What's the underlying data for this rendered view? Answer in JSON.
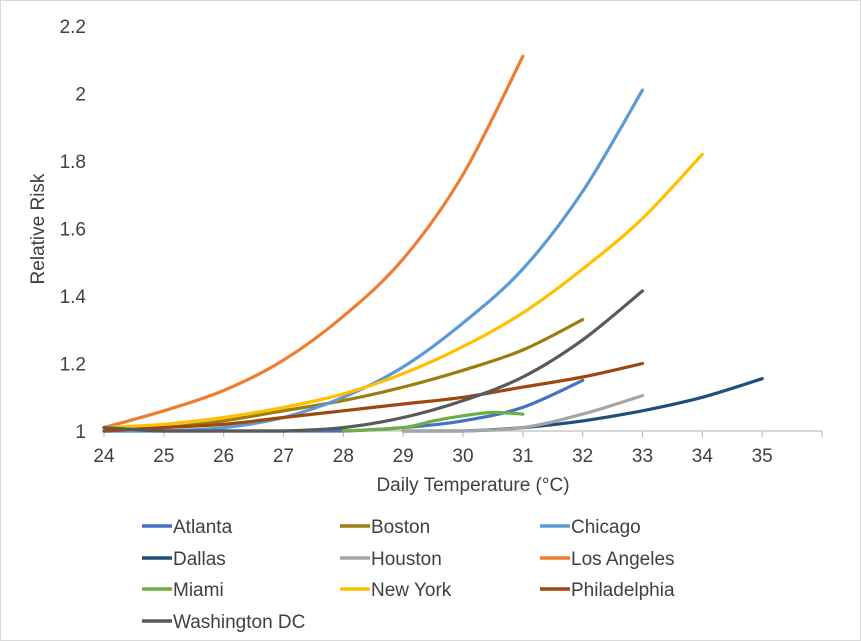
{
  "chart_data": {
    "type": "line",
    "title": "",
    "xlabel": "Daily Temperature (°C)",
    "ylabel": "Relative Risk",
    "xlim": [
      24,
      36
    ],
    "ylim": [
      1,
      2.2
    ],
    "x_ticks": [
      "24",
      "25",
      "26",
      "27",
      "28",
      "29",
      "30",
      "31",
      "32",
      "33",
      "34",
      "35"
    ],
    "y_ticks": [
      "1",
      "1.2",
      "1.4",
      "1.6",
      "1.8",
      "2",
      "2.2"
    ],
    "y_tick_values": [
      1,
      1.2,
      1.4,
      1.6,
      1.8,
      2,
      2.2
    ],
    "grid": false,
    "legend_position": "bottom",
    "series": [
      {
        "name": "Atlanta",
        "color": "#4472C4",
        "x": [
          24,
          25,
          26,
          27,
          28,
          29,
          30,
          31,
          32
        ],
        "y": [
          1.0,
          1.0,
          1.0,
          1.0,
          1.0,
          1.01,
          1.03,
          1.07,
          1.15
        ]
      },
      {
        "name": "Boston",
        "color": "#9C7E0E",
        "x": [
          24,
          25,
          26,
          27,
          28,
          29,
          30,
          31,
          32
        ],
        "y": [
          1.0,
          1.01,
          1.03,
          1.06,
          1.09,
          1.13,
          1.18,
          1.24,
          1.33
        ]
      },
      {
        "name": "Chicago",
        "color": "#5B9BD5",
        "x": [
          24,
          25,
          26,
          27,
          28,
          29,
          30,
          31,
          32,
          33
        ],
        "y": [
          1.0,
          1.0,
          1.01,
          1.04,
          1.1,
          1.19,
          1.32,
          1.48,
          1.71,
          2.01
        ]
      },
      {
        "name": "Dallas",
        "color": "#1F4E79",
        "x": [
          29,
          30,
          31,
          32,
          33,
          34,
          35
        ],
        "y": [
          1.0,
          1.0,
          1.01,
          1.03,
          1.06,
          1.1,
          1.155
        ]
      },
      {
        "name": "Houston",
        "color": "#A5A5A5",
        "x": [
          29,
          30,
          31,
          32,
          33
        ],
        "y": [
          1.0,
          1.0,
          1.01,
          1.05,
          1.105
        ]
      },
      {
        "name": "Los Angeles",
        "color": "#ED7D31",
        "x": [
          24,
          25,
          26,
          27,
          28,
          29,
          30,
          31
        ],
        "y": [
          1.01,
          1.06,
          1.12,
          1.21,
          1.34,
          1.51,
          1.76,
          2.11
        ]
      },
      {
        "name": "Miami",
        "color": "#70AD47",
        "x": [
          28,
          29,
          29.5,
          30,
          30.5,
          31
        ],
        "y": [
          1.0,
          1.01,
          1.03,
          1.045,
          1.055,
          1.05
        ]
      },
      {
        "name": "New York",
        "color": "#FFC000",
        "x": [
          24,
          25,
          26,
          27,
          28,
          29,
          30,
          31,
          32,
          33,
          34
        ],
        "y": [
          1.01,
          1.02,
          1.04,
          1.07,
          1.11,
          1.17,
          1.25,
          1.35,
          1.48,
          1.63,
          1.82
        ]
      },
      {
        "name": "Philadelphia",
        "color": "#9E480E",
        "x": [
          24,
          25,
          26,
          27,
          28,
          29,
          30,
          31,
          32,
          33
        ],
        "y": [
          1.0,
          1.01,
          1.02,
          1.04,
          1.06,
          1.08,
          1.1,
          1.13,
          1.16,
          1.2
        ]
      },
      {
        "name": "Washington DC",
        "color": "#595959",
        "x": [
          24,
          25,
          26,
          27,
          28,
          29,
          30,
          31,
          32,
          33
        ],
        "y": [
          1.01,
          1.0,
          1.0,
          1.0,
          1.01,
          1.04,
          1.09,
          1.16,
          1.27,
          1.415
        ]
      }
    ]
  }
}
